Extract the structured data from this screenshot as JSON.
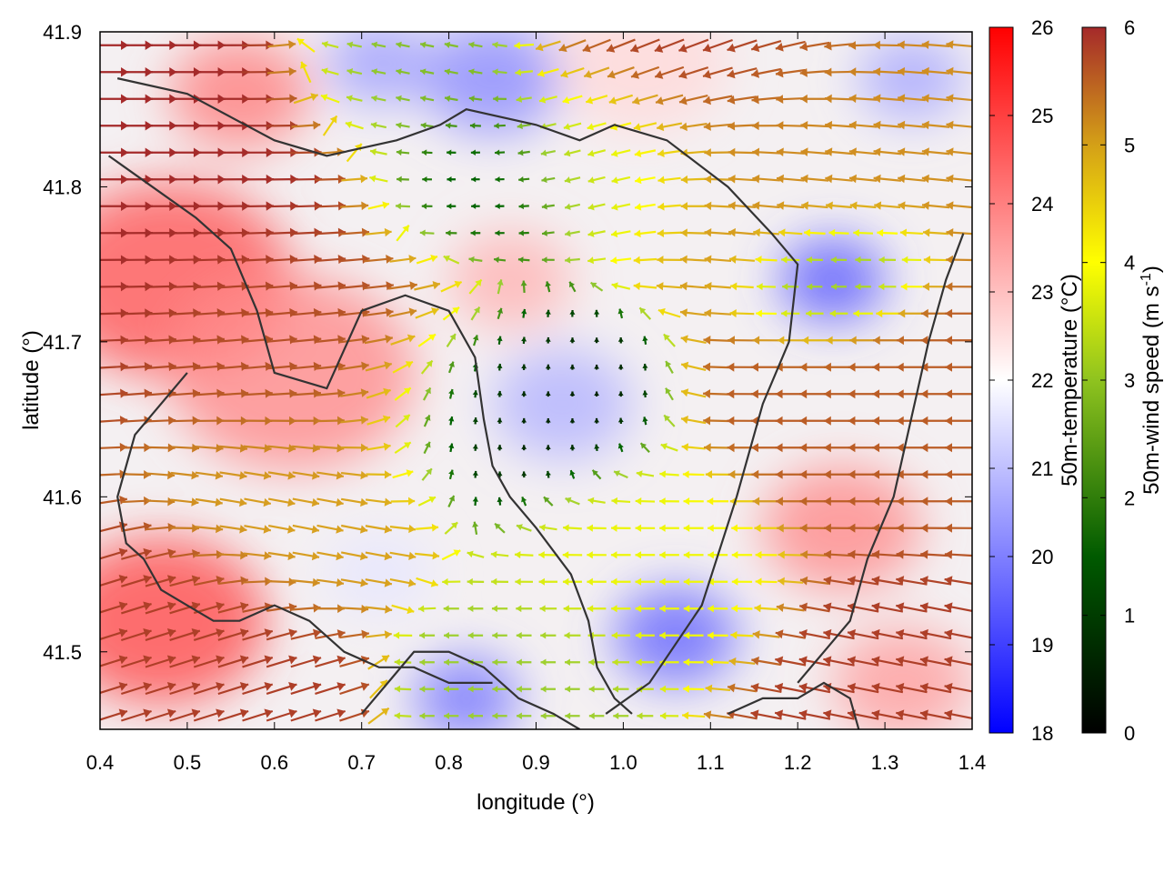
{
  "chart_data": {
    "type": "heatmap",
    "xlabel": "longitude (°)",
    "ylabel": "latitude (°)",
    "xlim": [
      0.4,
      1.4
    ],
    "ylim": [
      41.45,
      41.9
    ],
    "x_ticks": [
      "0.4",
      "0.5",
      "0.6",
      "0.7",
      "0.8",
      "0.9",
      "1.0",
      "1.1",
      "1.2",
      "1.3",
      "1.4"
    ],
    "y_ticks": [
      "41.5",
      "41.6",
      "41.7",
      "41.8",
      "41.9"
    ],
    "grid": false,
    "temperature_scale": {
      "label": "50m-temperature (°C)",
      "range": [
        18,
        26
      ],
      "ticks": [
        "18",
        "19",
        "20",
        "21",
        "22",
        "23",
        "24",
        "25",
        "26"
      ],
      "colors": [
        "#0000ff",
        "#ffffff",
        "#ff0000"
      ]
    },
    "wind_speed_scale": {
      "label_main": "50m-wind speed (m s",
      "label_sup": "-1",
      "label_end": ")",
      "range": [
        0,
        6
      ],
      "ticks": [
        "0",
        "1",
        "2",
        "3",
        "4",
        "5",
        "6"
      ],
      "colors": [
        "#000000",
        "#006400",
        "#9acd32",
        "#ffff00",
        "#daa520",
        "#a52a2a"
      ]
    },
    "temperature_zones": [
      {
        "lon": 0.48,
        "lat": 41.74,
        "temp": 24.6,
        "r": 0.14
      },
      {
        "lon": 0.47,
        "lat": 41.52,
        "temp": 24.8,
        "r": 0.12
      },
      {
        "lon": 0.62,
        "lat": 41.68,
        "temp": 23.8,
        "r": 0.14
      },
      {
        "lon": 0.56,
        "lat": 41.86,
        "temp": 24.0,
        "r": 0.08
      },
      {
        "lon": 0.85,
        "lat": 41.87,
        "temp": 20.2,
        "r": 0.08
      },
      {
        "lon": 0.72,
        "lat": 41.88,
        "temp": 20.5,
        "r": 0.06
      },
      {
        "lon": 0.87,
        "lat": 41.74,
        "temp": 23.2,
        "r": 0.07
      },
      {
        "lon": 0.93,
        "lat": 41.66,
        "temp": 20.8,
        "r": 0.08
      },
      {
        "lon": 0.82,
        "lat": 41.47,
        "temp": 19.8,
        "r": 0.06
      },
      {
        "lon": 1.06,
        "lat": 41.51,
        "temp": 19.6,
        "r": 0.07
      },
      {
        "lon": 1.24,
        "lat": 41.74,
        "temp": 19.4,
        "r": 0.06
      },
      {
        "lon": 1.33,
        "lat": 41.87,
        "temp": 20.6,
        "r": 0.06
      },
      {
        "lon": 1.25,
        "lat": 41.58,
        "temp": 23.8,
        "r": 0.09
      },
      {
        "lon": 1.02,
        "lat": 41.88,
        "temp": 22.6,
        "r": 0.1
      },
      {
        "lon": 1.32,
        "lat": 41.48,
        "temp": 23.5,
        "r": 0.08
      },
      {
        "lon": 0.72,
        "lat": 41.55,
        "temp": 21.6,
        "r": 0.06
      }
    ],
    "wind_field": {
      "columns": 36,
      "rows": 26,
      "sources": [
        {
          "lon": 0.47,
          "lat": 41.8,
          "speed": 6.0,
          "u": 1,
          "v": 0,
          "r": 0.16
        },
        {
          "lon": 0.46,
          "lat": 41.5,
          "speed": 5.8,
          "u": 0.95,
          "v": 0.3,
          "r": 0.12
        },
        {
          "lon": 0.63,
          "lat": 41.7,
          "speed": 5.6,
          "u": 1,
          "v": 0.1,
          "r": 0.14
        },
        {
          "lon": 0.62,
          "lat": 41.6,
          "speed": 4.8,
          "u": 0.95,
          "v": -0.2,
          "r": 0.1
        },
        {
          "lon": 0.86,
          "lat": 41.66,
          "speed": 0.4,
          "u": 0,
          "v": 1,
          "r": 0.1
        },
        {
          "lon": 0.83,
          "lat": 41.8,
          "speed": 1.0,
          "u": -1,
          "v": 0,
          "r": 0.08
        },
        {
          "lon": 0.75,
          "lat": 41.87,
          "speed": 2.2,
          "u": -1,
          "v": 0.2,
          "r": 0.08
        },
        {
          "lon": 0.98,
          "lat": 41.82,
          "speed": 2.8,
          "u": -1,
          "v": -0.3,
          "r": 0.09
        },
        {
          "lon": 1.02,
          "lat": 41.55,
          "speed": 3.4,
          "u": -1,
          "v": 0,
          "r": 0.1
        },
        {
          "lon": 1.15,
          "lat": 41.82,
          "speed": 5.0,
          "u": -1,
          "v": 0.1,
          "r": 0.12
        },
        {
          "lon": 1.08,
          "lat": 41.88,
          "speed": 5.9,
          "u": -0.9,
          "v": -0.4,
          "r": 0.1
        },
        {
          "lon": 1.3,
          "lat": 41.65,
          "speed": 5.5,
          "u": -1,
          "v": 0,
          "r": 0.12
        },
        {
          "lon": 1.24,
          "lat": 41.74,
          "speed": 2.2,
          "u": -1,
          "v": 0,
          "r": 0.06
        },
        {
          "lon": 1.3,
          "lat": 41.48,
          "speed": 5.8,
          "u": -1,
          "v": 0.2,
          "r": 0.1
        },
        {
          "lon": 0.9,
          "lat": 41.49,
          "speed": 2.4,
          "u": -1,
          "v": 0,
          "r": 0.08
        }
      ]
    },
    "contours": [
      {
        "lon": [
          0.42,
          0.5,
          0.6,
          0.66,
          0.74,
          0.79,
          0.82,
          0.9,
          0.95,
          0.99,
          1.05,
          1.12,
          1.17,
          1.2,
          1.19,
          1.16,
          1.13,
          1.09,
          1.03,
          0.98
        ],
        "lat": [
          41.87,
          41.86,
          41.83,
          41.82,
          41.83,
          41.84,
          41.85,
          41.84,
          41.83,
          41.84,
          41.83,
          41.8,
          41.77,
          41.75,
          41.7,
          41.66,
          41.6,
          41.53,
          41.48,
          41.46
        ]
      },
      {
        "lon": [
          0.41,
          0.46,
          0.51,
          0.55,
          0.58,
          0.6,
          0.66,
          0.7,
          0.75,
          0.8,
          0.83,
          0.84,
          0.85,
          0.87,
          0.9,
          0.94,
          0.96,
          0.97,
          0.99,
          1.01
        ],
        "lat": [
          41.82,
          41.8,
          41.78,
          41.76,
          41.72,
          41.68,
          41.67,
          41.72,
          41.73,
          41.72,
          41.69,
          41.65,
          41.62,
          41.6,
          41.58,
          41.55,
          41.52,
          41.49,
          41.47,
          41.46
        ]
      },
      {
        "lon": [
          0.5,
          0.44,
          0.42,
          0.43,
          0.45,
          0.47,
          0.5,
          0.53,
          0.56,
          0.6,
          0.64,
          0.68,
          0.72,
          0.76,
          0.8,
          0.85
        ],
        "lat": [
          41.68,
          41.64,
          41.6,
          41.57,
          41.56,
          41.54,
          41.53,
          41.52,
          41.52,
          41.53,
          41.52,
          41.5,
          41.49,
          41.49,
          41.48,
          41.48
        ]
      },
      {
        "lon": [
          1.2,
          1.23,
          1.26,
          1.28,
          1.31,
          1.33,
          1.35,
          1.37,
          1.39
        ],
        "lat": [
          41.48,
          41.5,
          41.52,
          41.56,
          41.6,
          41.65,
          41.7,
          41.74,
          41.77
        ]
      },
      {
        "lon": [
          0.7,
          0.73,
          0.76,
          0.8,
          0.84,
          0.88,
          0.92,
          0.95
        ],
        "lat": [
          41.46,
          41.48,
          41.5,
          41.5,
          41.49,
          41.47,
          41.46,
          41.45
        ]
      },
      {
        "lon": [
          1.12,
          1.16,
          1.2,
          1.23,
          1.26,
          1.27
        ],
        "lat": [
          41.46,
          41.47,
          41.47,
          41.48,
          41.47,
          41.45
        ]
      }
    ]
  }
}
